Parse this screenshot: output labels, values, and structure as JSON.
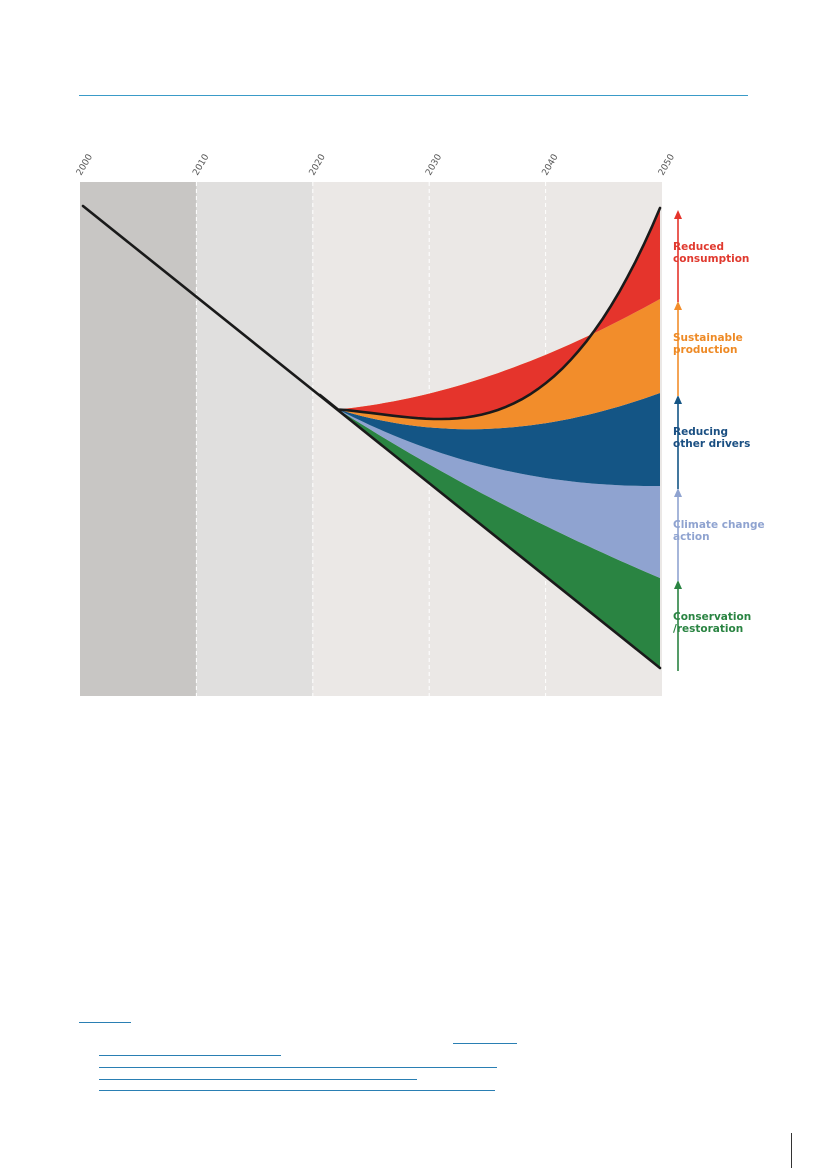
{
  "chart_data": {
    "type": "area",
    "title": "",
    "xlabel": "",
    "ylabel": "",
    "x_ticks": [
      "2000",
      "2010",
      "2020",
      "2030",
      "2040",
      "2050"
    ],
    "xlim": [
      2000,
      2050
    ],
    "grid": true,
    "periods": [
      {
        "from": 2000,
        "to": 2010,
        "color": "#c8c6c4"
      },
      {
        "from": 2010,
        "to": 2020,
        "color": "#e0dfde"
      },
      {
        "from": 2020,
        "to": 2050,
        "color": "#ebe8e6"
      }
    ],
    "baseline_trend": {
      "start_year": 2000,
      "end_year": 2050
    },
    "levers": [
      {
        "name": "Conservation /restoration",
        "line1": "Conservation",
        "line2": "/restoration",
        "color": "#2a8442",
        "label_color": "#2a8442"
      },
      {
        "name": "Climate change action",
        "line1": "Climate change",
        "line2": "action",
        "color": "#8fa3d0",
        "label_color": "#8fa3d0"
      },
      {
        "name": "Reducing other drivers",
        "line1": "Reducing",
        "line2": "other drivers",
        "color": "#145585",
        "label_color": "#1a4f82"
      },
      {
        "name": "Sustainable production",
        "line1": "Sustainable",
        "line2": "production",
        "color": "#f28d2b",
        "label_color": "#ee8a25"
      },
      {
        "name": "Reduced consumption",
        "line1": "Reduced",
        "line2": "consumption",
        "color": "#e5342c",
        "label_color": "#e03a2f"
      }
    ]
  }
}
